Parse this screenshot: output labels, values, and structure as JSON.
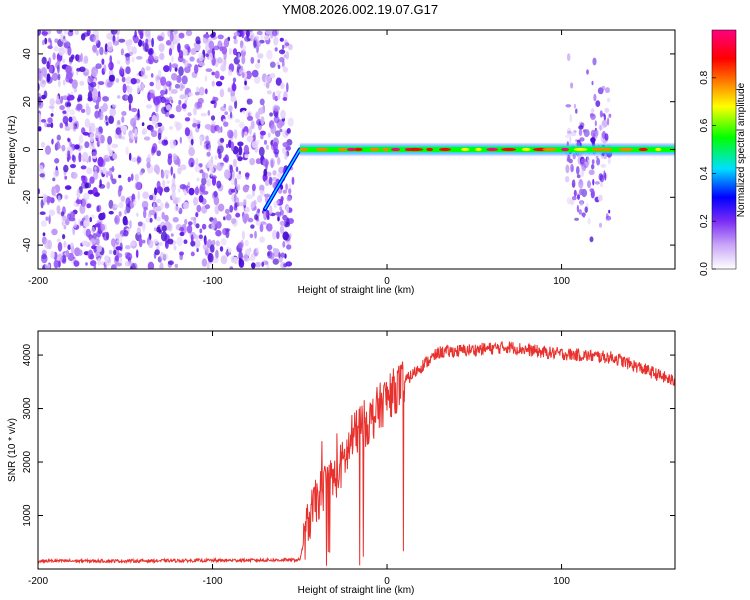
{
  "title": "YM08.2026.002.19.07.G17",
  "chart_data": [
    {
      "type": "heatmap",
      "name": "spectrogram",
      "xlabel": "Height of straight line (km)",
      "ylabel": "Frequency (Hz)",
      "xlim": [
        -200,
        165
      ],
      "ylim": [
        -50,
        50
      ],
      "x_ticks": [
        "-200",
        "-100",
        "0",
        "100"
      ],
      "x_tick_values": [
        -200,
        -100,
        0,
        100
      ],
      "y_ticks": [
        "-40",
        "-20",
        "0",
        "20",
        "40"
      ],
      "y_tick_values": [
        -40,
        -20,
        0,
        20,
        40
      ],
      "noise_region_km": [
        -200,
        -55
      ],
      "signal_line_hz": 0,
      "signal_start_km": -70,
      "bursts_km": [
        [
          103,
          128
        ]
      ],
      "colorbar": {
        "label": "Normalized spectral amplitude",
        "range": [
          0,
          1
        ],
        "ticks": [
          "0.0",
          "0.2",
          "0.4",
          "0.6",
          "0.8"
        ],
        "tick_values": [
          0.0,
          0.2,
          0.4,
          0.6,
          0.8
        ],
        "colors": [
          "#ffffff",
          "#7b2cf5",
          "#0000ff",
          "#00e0ff",
          "#00ff00",
          "#ffff00",
          "#ff8000",
          "#ff0000",
          "#ff0080"
        ]
      }
    },
    {
      "type": "line",
      "name": "snr",
      "xlabel": "Height of straight line (km)",
      "ylabel": "SNR (10 * v/v)",
      "xlim": [
        -200,
        165
      ],
      "ylim": [
        0,
        4450
      ],
      "x_ticks": [
        "-200",
        "-100",
        "0",
        "100"
      ],
      "x_tick_values": [
        -200,
        -100,
        0,
        100
      ],
      "y_ticks": [
        "1000",
        "2000",
        "3000",
        "4000"
      ],
      "y_tick_values": [
        1000,
        2000,
        3000,
        4000
      ],
      "color": "#e8302c",
      "trend_x": [
        -200,
        -150,
        -100,
        -50,
        -45,
        -40,
        -35,
        -30,
        -25,
        -20,
        -15,
        -10,
        -5,
        0,
        10,
        20,
        30,
        50,
        70,
        90,
        110,
        130,
        150,
        165
      ],
      "trend_y": [
        150,
        150,
        160,
        170,
        900,
        1300,
        1600,
        1700,
        2000,
        2400,
        2700,
        2750,
        3000,
        3200,
        3500,
        3800,
        4050,
        4100,
        4150,
        4050,
        4000,
        3950,
        3700,
        3500
      ]
    }
  ]
}
